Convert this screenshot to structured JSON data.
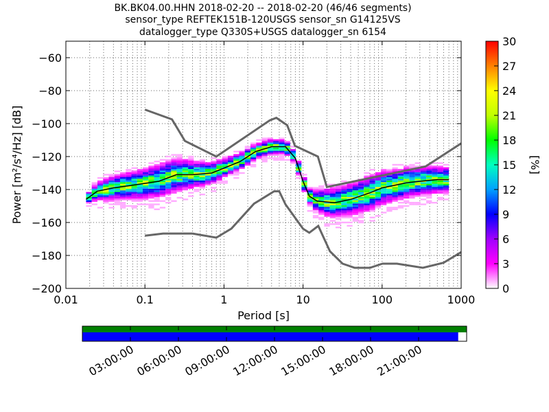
{
  "chart_data": {
    "type": "heatmap",
    "title_lines": [
      "BK.BK04.00.HHN   2018-02-20 -- 2018-02-20  (46/46 segments)",
      "sensor_type REFTEK151B-120USGS sensor_sn G14125VS",
      "datalogger_type Q330S+USGS datalogger_sn 6154"
    ],
    "xlabel": "Period [s]",
    "ylabel": "Power [m²/s⁴/Hz] [dB]",
    "x_scale": "log",
    "xlim": [
      0.01,
      1000
    ],
    "ylim": [
      -200,
      -50
    ],
    "x_ticks": [
      {
        "value": 0.01,
        "label": "0.01"
      },
      {
        "value": 0.1,
        "label": "0.1"
      },
      {
        "value": 1,
        "label": "1"
      },
      {
        "value": 10,
        "label": "10"
      },
      {
        "value": 100,
        "label": "100"
      },
      {
        "value": 1000,
        "label": "1000"
      }
    ],
    "y_ticks": [
      {
        "value": -60,
        "label": "−60"
      },
      {
        "value": -80,
        "label": "−80"
      },
      {
        "value": -100,
        "label": "−100"
      },
      {
        "value": -120,
        "label": "−120"
      },
      {
        "value": -140,
        "label": "−140"
      },
      {
        "value": -160,
        "label": "−160"
      },
      {
        "value": -180,
        "label": "−180"
      },
      {
        "value": -200,
        "label": "−200"
      }
    ],
    "colorbar": {
      "label": "[%]",
      "range": [
        0,
        30
      ],
      "ticks": [
        "0",
        "3",
        "6",
        "9",
        "12",
        "15",
        "18",
        "21",
        "24",
        "27",
        "30"
      ],
      "colors": [
        "#ffffff",
        "#ff00ff",
        "#a000ff",
        "#0000ff",
        "#00a0ff",
        "#00ffc0",
        "#00ff00",
        "#c0ff00",
        "#ffff00",
        "#ff8000",
        "#ff0000"
      ]
    },
    "noise_models": {
      "high": [
        [
          0.1,
          -91.5
        ],
        [
          0.22,
          -97.4
        ],
        [
          0.32,
          -110.5
        ],
        [
          0.8,
          -120
        ],
        [
          3.8,
          -98
        ],
        [
          4.6,
          -96.5
        ],
        [
          6.3,
          -101
        ],
        [
          7.9,
          -113.5
        ],
        [
          15.4,
          -120
        ],
        [
          20,
          -138.5
        ],
        [
          354.8,
          -126
        ],
        [
          1000,
          -112
        ]
      ],
      "low": [
        [
          0.1,
          -168
        ],
        [
          0.17,
          -166.7
        ],
        [
          0.4,
          -166.7
        ],
        [
          0.8,
          -169.2
        ],
        [
          1.24,
          -163.7
        ],
        [
          2.4,
          -148.6
        ],
        [
          4.3,
          -141.1
        ],
        [
          5.0,
          -141.1
        ],
        [
          6.0,
          -149
        ],
        [
          10,
          -163.8
        ],
        [
          12,
          -166.2
        ],
        [
          15.6,
          -162.1
        ],
        [
          21.9,
          -177.5
        ],
        [
          31.6,
          -185
        ],
        [
          45,
          -187.5
        ],
        [
          70,
          -187.5
        ],
        [
          101,
          -185
        ],
        [
          154,
          -185
        ],
        [
          328,
          -187.5
        ],
        [
          600,
          -184.4
        ],
        [
          1000,
          -178
        ]
      ]
    },
    "mean_curve": [
      [
        0.018,
        -146
      ],
      [
        0.025,
        -141
      ],
      [
        0.04,
        -139
      ],
      [
        0.08,
        -137
      ],
      [
        0.15,
        -135
      ],
      [
        0.25,
        -131
      ],
      [
        0.4,
        -131
      ],
      [
        0.7,
        -130
      ],
      [
        1.0,
        -127
      ],
      [
        1.6,
        -123
      ],
      [
        2.5,
        -117
      ],
      [
        4,
        -114
      ],
      [
        6,
        -114
      ],
      [
        8,
        -121
      ],
      [
        10,
        -135
      ],
      [
        12,
        -144
      ],
      [
        15,
        -147
      ],
      [
        25,
        -148
      ],
      [
        40,
        -146
      ],
      [
        70,
        -142
      ],
      [
        100,
        -139
      ],
      [
        200,
        -136
      ],
      [
        300,
        -135
      ],
      [
        500,
        -134
      ],
      [
        700,
        -134
      ]
    ],
    "spread": [
      [
        0.018,
        3
      ],
      [
        0.03,
        7
      ],
      [
        0.08,
        9
      ],
      [
        0.2,
        11
      ],
      [
        0.5,
        8
      ],
      [
        1.0,
        6
      ],
      [
        2.5,
        5
      ],
      [
        5,
        5
      ],
      [
        8,
        4
      ],
      [
        12,
        5
      ],
      [
        20,
        9
      ],
      [
        40,
        10
      ],
      [
        70,
        11
      ],
      [
        150,
        10
      ],
      [
        300,
        9
      ],
      [
        700,
        8
      ]
    ]
  },
  "timeline": {
    "labels": [
      "03:00:00",
      "06:00:00",
      "09:00:00",
      "12:00:00",
      "15:00:00",
      "18:00:00",
      "21:00:00"
    ],
    "hours": [
      3,
      6,
      9,
      12,
      15,
      18,
      21
    ],
    "span_hours": [
      0,
      24
    ],
    "data_coverage_fraction": 1.0,
    "psd_coverage_fraction": 0.978,
    "data_color": "#008000",
    "psd_color": "#0000ff"
  }
}
